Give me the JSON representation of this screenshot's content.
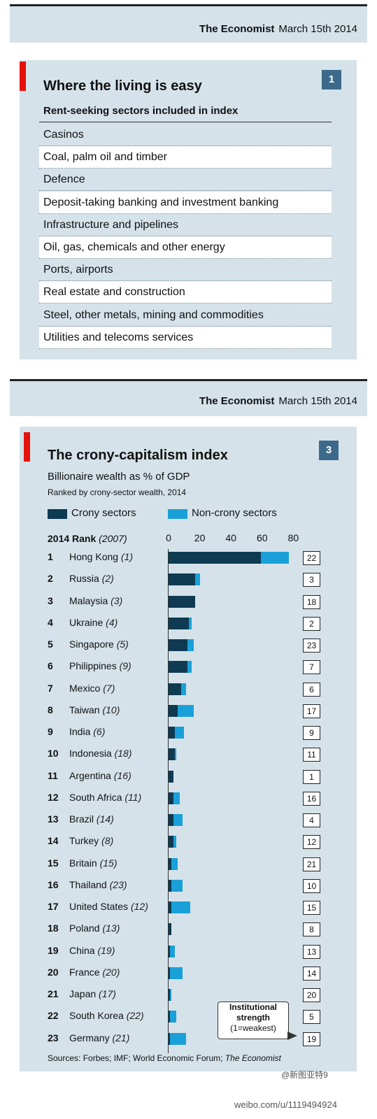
{
  "header1": {
    "publication": "The Economist",
    "date": "March 15th 2014"
  },
  "panel1": {
    "number": "1",
    "title": "Where the living is easy",
    "subtitle": "Rent-seeking sectors included in index",
    "sectors": [
      "Casinos",
      "Coal, palm oil and timber",
      "Defence",
      "Deposit-taking banking and investment banking",
      "Infrastructure and pipelines",
      "Oil, gas, chemicals and other energy",
      "Ports, airports",
      "Real estate and construction",
      "Steel, other metals, mining and commodities",
      "Utilities and telecoms services"
    ]
  },
  "header2": {
    "publication": "The Economist",
    "date": "March 15th 2014"
  },
  "chart_data": {
    "type": "bar",
    "number": "3",
    "title": "The crony-capitalism index",
    "subtitle": "Billionaire wealth as % of GDP",
    "subtitle2": "Ranked by crony-sector wealth, 2014",
    "legend": [
      "Crony sectors",
      "Non-crony sectors"
    ],
    "rank_header": "2014 Rank",
    "rank_header_prev": "(2007)",
    "xlim": [
      0,
      80
    ],
    "ticks": [
      "0",
      "20",
      "40",
      "60",
      "80"
    ],
    "colors": {
      "crony": "#0e3a52",
      "noncrony": "#1aa0d8"
    },
    "rows": [
      {
        "rank": "1",
        "country": "Hong Kong",
        "prev": "(1)",
        "crony": 59,
        "noncrony": 18,
        "inst": "22"
      },
      {
        "rank": "2",
        "country": "Russia",
        "prev": "(2)",
        "crony": 17,
        "noncrony": 3,
        "inst": "3"
      },
      {
        "rank": "3",
        "country": "Malaysia",
        "prev": "(3)",
        "crony": 17,
        "noncrony": 0,
        "inst": "18"
      },
      {
        "rank": "4",
        "country": "Ukraine",
        "prev": "(4)",
        "crony": 13,
        "noncrony": 2,
        "inst": "2"
      },
      {
        "rank": "5",
        "country": "Singapore",
        "prev": "(5)",
        "crony": 12,
        "noncrony": 4,
        "inst": "23"
      },
      {
        "rank": "6",
        "country": "Philippines",
        "prev": "(9)",
        "crony": 12,
        "noncrony": 3,
        "inst": "7"
      },
      {
        "rank": "7",
        "country": "Mexico",
        "prev": "(7)",
        "crony": 8,
        "noncrony": 3,
        "inst": "6"
      },
      {
        "rank": "8",
        "country": "Taiwan",
        "prev": "(10)",
        "crony": 6,
        "noncrony": 10,
        "inst": "17"
      },
      {
        "rank": "9",
        "country": "India",
        "prev": "(6)",
        "crony": 4,
        "noncrony": 6,
        "inst": "9"
      },
      {
        "rank": "10",
        "country": "Indonesia",
        "prev": "(18)",
        "crony": 4,
        "noncrony": 1,
        "inst": "11"
      },
      {
        "rank": "11",
        "country": "Argentina",
        "prev": "(16)",
        "crony": 3,
        "noncrony": 0,
        "inst": "1"
      },
      {
        "rank": "12",
        "country": "South Africa",
        "prev": "(11)",
        "crony": 3,
        "noncrony": 4,
        "inst": "16"
      },
      {
        "rank": "13",
        "country": "Brazil",
        "prev": "(14)",
        "crony": 3,
        "noncrony": 6,
        "inst": "4"
      },
      {
        "rank": "14",
        "country": "Turkey",
        "prev": "(8)",
        "crony": 3,
        "noncrony": 2,
        "inst": "12"
      },
      {
        "rank": "15",
        "country": "Britain",
        "prev": "(15)",
        "crony": 2,
        "noncrony": 4,
        "inst": "21"
      },
      {
        "rank": "16",
        "country": "Thailand",
        "prev": "(23)",
        "crony": 2,
        "noncrony": 7,
        "inst": "10"
      },
      {
        "rank": "17",
        "country": "United States",
        "prev": "(12)",
        "crony": 2,
        "noncrony": 12,
        "inst": "15"
      },
      {
        "rank": "18",
        "country": "Poland",
        "prev": "(13)",
        "crony": 2,
        "noncrony": 0,
        "inst": "8"
      },
      {
        "rank": "19",
        "country": "China",
        "prev": "(19)",
        "crony": 1,
        "noncrony": 3,
        "inst": "13"
      },
      {
        "rank": "20",
        "country": "France",
        "prev": "(20)",
        "crony": 1,
        "noncrony": 8,
        "inst": "14"
      },
      {
        "rank": "21",
        "country": "Japan",
        "prev": "(17)",
        "crony": 1,
        "noncrony": 1,
        "inst": "20"
      },
      {
        "rank": "22",
        "country": "South Korea",
        "prev": "(22)",
        "crony": 1,
        "noncrony": 4,
        "inst": "5"
      },
      {
        "rank": "23",
        "country": "Germany",
        "prev": "(21)",
        "crony": 1,
        "noncrony": 10,
        "inst": "19"
      }
    ],
    "note_lines": [
      "Institutional",
      "strength",
      "(1=weakest)"
    ],
    "sources": "Sources: Forbes; IMF; World Economic Forum;",
    "sources_italic": "The Economist"
  },
  "watermark": {
    "handle": "@新图亚特9",
    "url": "weibo.com/u/1119494924"
  }
}
